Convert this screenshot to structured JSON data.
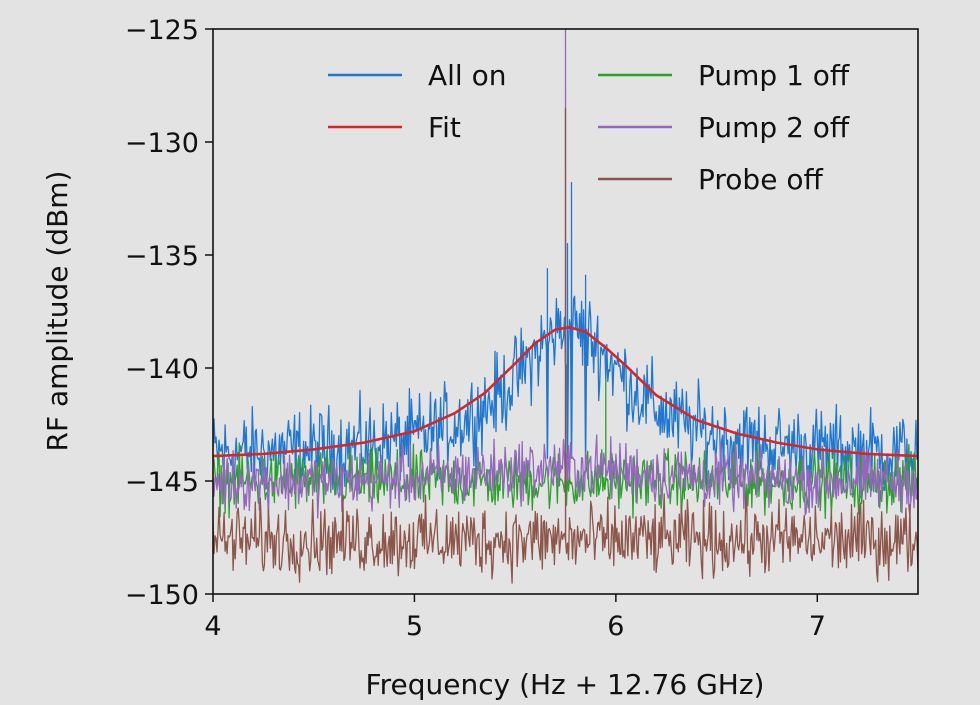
{
  "chart_data": {
    "type": "line",
    "title": "",
    "xlabel": "Frequency (Hz + 12.76 GHz)",
    "ylabel": "RF amplitude (dBm)",
    "xlim": [
      4,
      7.5
    ],
    "ylim": [
      -150,
      -125
    ],
    "xticks": [
      4,
      5,
      6,
      7
    ],
    "xtick_labels": [
      "4",
      "5",
      "6",
      "7"
    ],
    "yticks": [
      -150,
      -145,
      -140,
      -135,
      -130,
      -125
    ],
    "ytick_labels": [
      "−150",
      "−145",
      "−140",
      "−135",
      "−130",
      "−125"
    ],
    "grid": false,
    "legend_position": "top-right",
    "background": "#e3e3e3",
    "series": [
      {
        "name": "All on",
        "color": "#1f77d0",
        "kind": "noisy-lorentzian",
        "center": 5.77,
        "baseline": -144.0,
        "peak": -138.2,
        "hwhm": 0.34,
        "noise_amplitude": 1.4,
        "spikes": [
          [
            5.78,
            -131.8
          ],
          [
            5.76,
            -134.5
          ],
          [
            5.66,
            -135.6
          ],
          [
            5.85,
            -135.9
          ]
        ]
      },
      {
        "name": "Fit",
        "color": "#d62728",
        "kind": "lorentzian",
        "x": [
          4.0,
          4.25,
          4.5,
          4.75,
          5.0,
          5.2,
          5.35,
          5.5,
          5.6,
          5.7,
          5.77,
          5.85,
          5.95,
          6.05,
          6.2,
          6.4,
          6.6,
          6.8,
          7.0,
          7.25,
          7.5
        ],
        "y": [
          -143.9,
          -143.8,
          -143.6,
          -143.3,
          -142.8,
          -142.0,
          -141.1,
          -139.8,
          -138.9,
          -138.3,
          -138.2,
          -138.4,
          -139.1,
          -139.9,
          -141.2,
          -142.3,
          -142.9,
          -143.3,
          -143.6,
          -143.8,
          -143.9
        ]
      },
      {
        "name": "Pump 1 off",
        "color": "#2ca02c",
        "kind": "noise",
        "baseline": -145.0,
        "noise_amplitude": 1.0,
        "spikes": [
          [
            5.95,
            -140.5
          ],
          [
            5.72,
            -144.0
          ]
        ]
      },
      {
        "name": "Pump 2 off",
        "color": "#9467bd",
        "kind": "noise",
        "baseline": -145.0,
        "center_bump": 0.6,
        "noise_amplitude": 1.0,
        "spikes": [
          [
            5.75,
            -125.0
          ]
        ]
      },
      {
        "name": "Probe off",
        "color": "#8c564b",
        "kind": "noise",
        "baseline": -147.6,
        "noise_amplitude": 1.2,
        "spikes": [
          [
            5.75,
            -128.5
          ]
        ]
      }
    ]
  }
}
